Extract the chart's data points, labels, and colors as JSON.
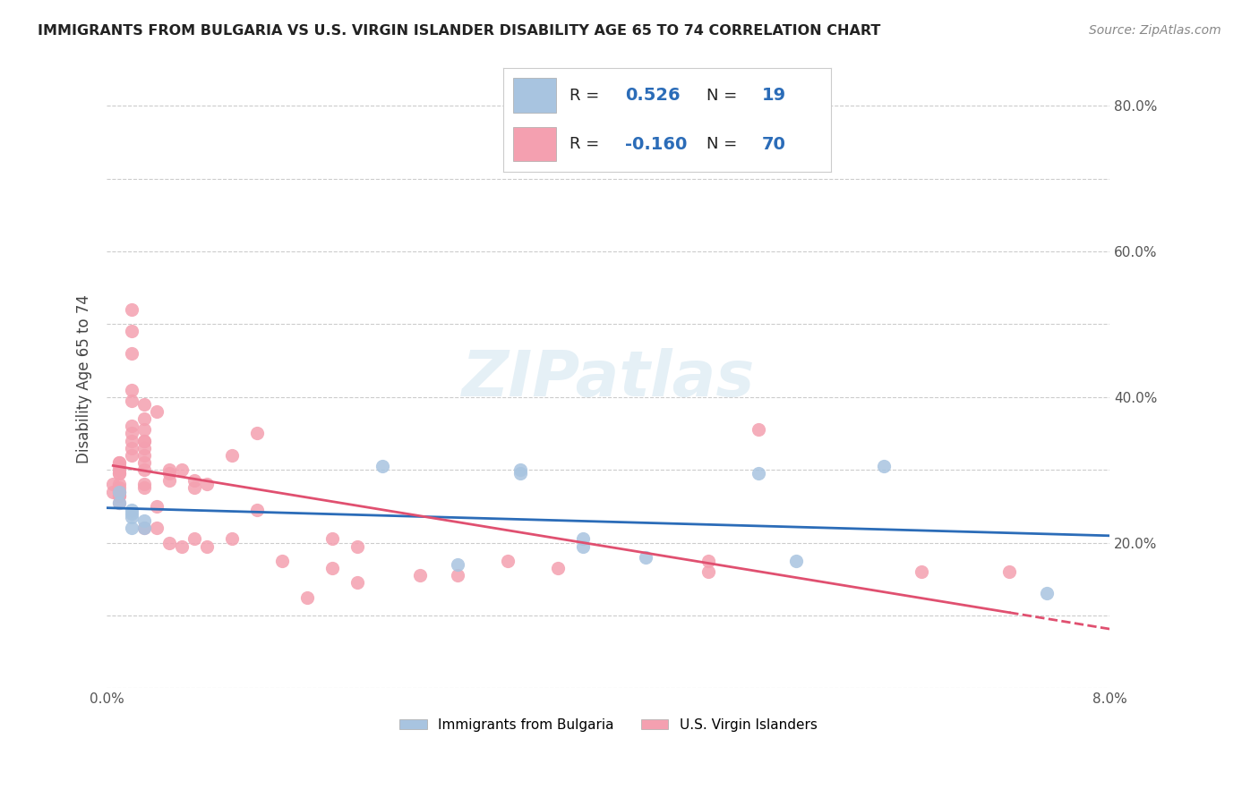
{
  "title": "IMMIGRANTS FROM BULGARIA VS U.S. VIRGIN ISLANDER DISABILITY AGE 65 TO 74 CORRELATION CHART",
  "source": "Source: ZipAtlas.com",
  "ylabel": "Disability Age 65 to 74",
  "xlim": [
    0.0,
    0.08
  ],
  "ylim": [
    0.0,
    0.85
  ],
  "blue_R": 0.526,
  "blue_N": 19,
  "pink_R": -0.16,
  "pink_N": 70,
  "blue_color": "#a8c4e0",
  "pink_color": "#f4a0b0",
  "blue_line_color": "#2b6cb8",
  "pink_line_color": "#e05070",
  "watermark": "ZIPatlas",
  "legend_label_blue": "Immigrants from Bulgaria",
  "legend_label_pink": "U.S. Virgin Islanders",
  "blue_x": [
    0.001,
    0.001,
    0.002,
    0.002,
    0.002,
    0.002,
    0.003,
    0.003,
    0.022,
    0.028,
    0.033,
    0.033,
    0.038,
    0.038,
    0.043,
    0.052,
    0.055,
    0.062,
    0.075
  ],
  "blue_y": [
    0.27,
    0.255,
    0.24,
    0.235,
    0.245,
    0.22,
    0.22,
    0.23,
    0.305,
    0.17,
    0.295,
    0.3,
    0.195,
    0.205,
    0.18,
    0.295,
    0.175,
    0.305,
    0.13
  ],
  "pink_x": [
    0.0005,
    0.0005,
    0.001,
    0.001,
    0.001,
    0.001,
    0.001,
    0.001,
    0.001,
    0.001,
    0.001,
    0.001,
    0.001,
    0.001,
    0.001,
    0.002,
    0.002,
    0.002,
    0.002,
    0.002,
    0.002,
    0.002,
    0.002,
    0.002,
    0.002,
    0.003,
    0.003,
    0.003,
    0.003,
    0.003,
    0.003,
    0.003,
    0.003,
    0.003,
    0.003,
    0.003,
    0.003,
    0.004,
    0.004,
    0.004,
    0.005,
    0.005,
    0.005,
    0.005,
    0.006,
    0.006,
    0.007,
    0.007,
    0.007,
    0.008,
    0.008,
    0.01,
    0.01,
    0.012,
    0.012,
    0.014,
    0.016,
    0.018,
    0.018,
    0.02,
    0.02,
    0.025,
    0.028,
    0.032,
    0.036,
    0.048,
    0.048,
    0.052,
    0.065,
    0.072
  ],
  "pink_y": [
    0.28,
    0.27,
    0.31,
    0.3,
    0.295,
    0.31,
    0.305,
    0.295,
    0.28,
    0.265,
    0.27,
    0.275,
    0.255,
    0.265,
    0.27,
    0.52,
    0.49,
    0.46,
    0.41,
    0.395,
    0.36,
    0.35,
    0.34,
    0.33,
    0.32,
    0.39,
    0.355,
    0.37,
    0.34,
    0.34,
    0.33,
    0.32,
    0.31,
    0.3,
    0.28,
    0.275,
    0.22,
    0.38,
    0.25,
    0.22,
    0.3,
    0.295,
    0.285,
    0.2,
    0.3,
    0.195,
    0.285,
    0.275,
    0.205,
    0.28,
    0.195,
    0.32,
    0.205,
    0.35,
    0.245,
    0.175,
    0.125,
    0.205,
    0.165,
    0.195,
    0.145,
    0.155,
    0.155,
    0.175,
    0.165,
    0.16,
    0.175,
    0.355,
    0.16,
    0.16
  ]
}
